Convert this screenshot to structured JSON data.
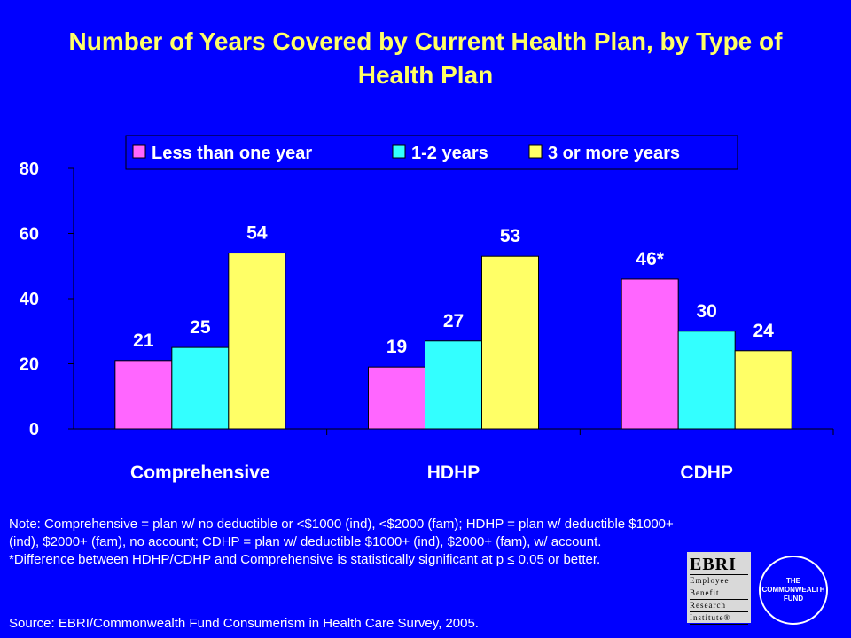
{
  "title": "Number of Years Covered by Current Health Plan, by Type of Health Plan",
  "chart_data": {
    "type": "bar",
    "categories": [
      "Comprehensive",
      "HDHP",
      "CDHP"
    ],
    "series": [
      {
        "name": "Less than one year",
        "values": [
          21,
          19,
          46
        ],
        "labels": [
          "21",
          "19",
          "46*"
        ],
        "color": "#ff66ff"
      },
      {
        "name": "1-2 years",
        "values": [
          25,
          27,
          30
        ],
        "labels": [
          "25",
          "27",
          "30"
        ],
        "color": "#33ffff"
      },
      {
        "name": "3 or more years",
        "values": [
          54,
          53,
          24
        ],
        "labels": [
          "54",
          "53",
          "24"
        ],
        "color": "#ffff66"
      }
    ],
    "ylim": [
      0,
      80
    ],
    "yticks": [
      0,
      20,
      40,
      60,
      80
    ],
    "xlabel": "",
    "ylabel": "",
    "legend_position": "top",
    "grid": false
  },
  "notes": {
    "line1": "Note: Comprehensive = plan w/ no deductible or <$1000 (ind), <$2000 (fam); HDHP = plan w/ deductible $1000+ (ind), $2000+ (fam), no account; CDHP = plan w/ deductible $1000+ (ind), $2000+ (fam), w/ account.",
    "line2": "*Difference between HDHP/CDHP and Comprehensive is statistically significant at p ≤ 0.05 or better."
  },
  "source": "Source: EBRI/Commonwealth Fund Consumerism in Health Care Survey, 2005.",
  "logos": {
    "ebri": {
      "acronym": "EBRI",
      "line1": "Employee",
      "line2": "Benefit",
      "line3": "Research",
      "line4": "Institute®"
    },
    "commonwealth": {
      "line1": "THE",
      "line2": "COMMONWEALTH",
      "line3": "FUND"
    }
  },
  "colors": {
    "background": "#0000ff",
    "title": "#ffff66",
    "text": "#ffffff"
  }
}
